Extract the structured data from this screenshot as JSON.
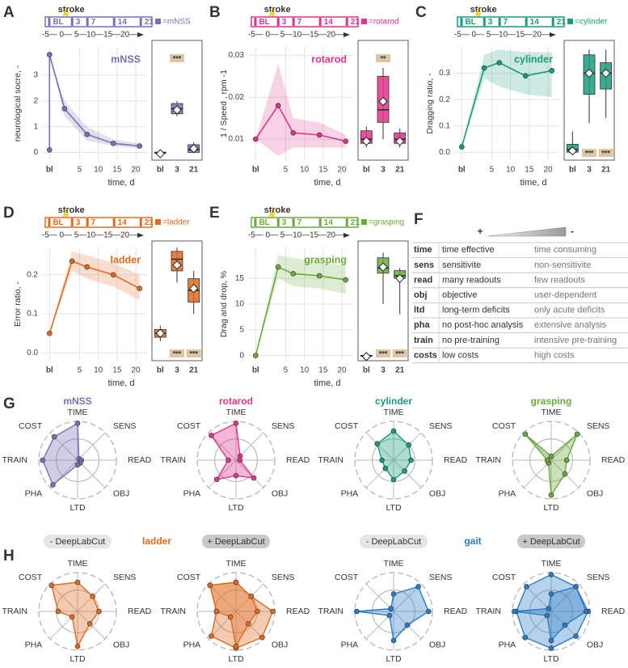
{
  "panel_labels": [
    "A",
    "B",
    "C",
    "D",
    "E",
    "F",
    "G",
    "H"
  ],
  "chart_data": [
    {
      "type": "line",
      "title": "mNSS",
      "color": "#7b6fb5",
      "y_label": "neurological socre, -",
      "x_label": "time, d",
      "x": [
        -3,
        -3,
        1,
        7,
        14,
        21
      ],
      "values": [
        0.1,
        3.8,
        1.7,
        0.7,
        0.35,
        0.25
      ],
      "band_lower": [
        0.1,
        3.8,
        1.4,
        0.45,
        0.25,
        0.15
      ],
      "band_upper": [
        0.1,
        3.8,
        2.0,
        1.0,
        0.5,
        0.35
      ],
      "xlim": [
        -5,
        23
      ],
      "xticks": [
        {
          "value": -3,
          "label": "bl"
        },
        5,
        10,
        15,
        20
      ],
      "ylim": [
        -0.3,
        4.1
      ],
      "yticks": [
        0,
        1,
        2,
        3
      ],
      "grid": true,
      "timeline": {
        "event": "stroke",
        "marks": [
          {
            "value": -3,
            "label": "BL"
          },
          3,
          7,
          14,
          21
        ],
        "axis": "-5— 0— 5—10—15—20—",
        "legend": "=mNSS"
      },
      "boxplot": {
        "categories": [
          "bl",
          "3",
          "21"
        ],
        "boxes": [
          {
            "min": 0,
            "q1": 0,
            "median": 0,
            "q3": 0,
            "max": 0.1,
            "mean": -0.05
          },
          {
            "min": 1.4,
            "q1": 1.5,
            "median": 1.7,
            "q3": 1.9,
            "max": 2.0,
            "mean": 1.65
          },
          {
            "min": 0,
            "q1": 0,
            "median": 0.1,
            "q3": 0.3,
            "max": 0.4,
            "mean": 0.15
          }
        ],
        "significance": [
          null,
          "***",
          null
        ],
        "significance_position": "top"
      }
    },
    {
      "type": "line",
      "title": "rotarod",
      "color": "#e0338a",
      "y_label": "1 / Speed , rpm -1",
      "x_label": "time, d",
      "x": [
        -3,
        3,
        7,
        14,
        21
      ],
      "values": [
        0.01,
        0.018,
        0.0115,
        0.011,
        0.0095
      ],
      "band_lower": [
        0.01,
        0.006,
        0.008,
        0.008,
        0.008
      ],
      "band_upper": [
        0.01,
        0.028,
        0.015,
        0.014,
        0.011
      ],
      "xlim": [
        -5,
        23
      ],
      "xticks": [
        {
          "value": -3,
          "label": "bl"
        },
        5,
        10,
        15,
        20
      ],
      "ylim": [
        0.005,
        0.032
      ],
      "yticks": [
        0.01,
        0.02,
        0.03
      ],
      "grid": true,
      "timeline": {
        "event": "stroke",
        "marks": [
          {
            "value": -3,
            "label": "BL"
          },
          3,
          7,
          14,
          21
        ],
        "axis": "-5— 0— 5—10—15—20—",
        "legend": "=rotarod"
      },
      "boxplot": {
        "categories": [
          "bl",
          "3",
          "21"
        ],
        "boxes": [
          {
            "min": 0.008,
            "q1": 0.009,
            "median": 0.01,
            "q3": 0.012,
            "max": 0.013,
            "mean": 0.0095
          },
          {
            "min": 0.01,
            "q1": 0.014,
            "median": 0.017,
            "q3": 0.025,
            "max": 0.027,
            "mean": 0.019
          },
          {
            "min": 0.008,
            "q1": 0.009,
            "median": 0.01,
            "q3": 0.0115,
            "max": 0.0125,
            "mean": 0.0095
          }
        ],
        "significance": [
          null,
          "**",
          null
        ],
        "significance_position": "top"
      }
    },
    {
      "type": "line",
      "title": "cylinder",
      "color": "#1a9b7c",
      "y_label": "Dragging ratio, -",
      "x_label": "time, d",
      "x": [
        -3,
        3,
        7,
        14,
        21
      ],
      "values": [
        0.02,
        0.32,
        0.34,
        0.29,
        0.31
      ],
      "band_lower": [
        0.02,
        0.28,
        0.25,
        0.22,
        0.21
      ],
      "band_upper": [
        0.02,
        0.37,
        0.39,
        0.38,
        0.38
      ],
      "xlim": [
        -5,
        23
      ],
      "xticks": [
        {
          "value": -3,
          "label": "bl"
        },
        5,
        10,
        15,
        20
      ],
      "ylim": [
        -0.03,
        0.4
      ],
      "yticks": [
        {
          "value": 0,
          "label": "0.0"
        },
        0.1,
        0.2,
        0.3
      ],
      "grid": true,
      "timeline": {
        "event": "stroke",
        "marks": [
          {
            "value": -3,
            "label": "BL"
          },
          3,
          7,
          14,
          21
        ],
        "axis": "-5— 0— 5—10—15—20—",
        "legend": "=cylinder"
      },
      "boxplot": {
        "categories": [
          "bl",
          "3",
          "21"
        ],
        "boxes": [
          {
            "min": 0,
            "q1": 0,
            "median": 0.01,
            "q3": 0.03,
            "max": 0.08,
            "mean": 0.005
          },
          {
            "min": 0.11,
            "q1": 0.22,
            "median": 0.3,
            "q3": 0.37,
            "max": 0.39,
            "mean": 0.3
          },
          {
            "min": 0.13,
            "q1": 0.24,
            "median": 0.3,
            "q3": 0.34,
            "max": 0.39,
            "mean": 0.3
          }
        ],
        "significance": [
          null,
          "***",
          "***"
        ],
        "significance_position": "bottom"
      }
    },
    {
      "type": "line",
      "title": "ladder",
      "color": "#e06b1f",
      "y_label": "Error ratio, -",
      "x_label": "time, d",
      "x": [
        -3,
        3,
        7,
        14,
        21
      ],
      "values": [
        0.05,
        0.235,
        0.22,
        0.2,
        0.165
      ],
      "band_lower": [
        0.05,
        0.21,
        0.19,
        0.17,
        0.135
      ],
      "band_upper": [
        0.05,
        0.26,
        0.25,
        0.23,
        0.2
      ],
      "xlim": [
        -5,
        23
      ],
      "xticks": [
        {
          "value": -3,
          "label": "bl"
        },
        5,
        10,
        15,
        20
      ],
      "ylim": [
        -0.02,
        0.27
      ],
      "yticks": [
        {
          "value": 0,
          "label": "0.0"
        },
        0.1,
        0.2
      ],
      "grid": true,
      "timeline": {
        "event": "stroke",
        "marks": [
          {
            "value": -3,
            "label": "BL"
          },
          3,
          7,
          14,
          21
        ],
        "axis": "-5— 0— 5—10—15—20—",
        "legend": "=ladder"
      },
      "boxplot": {
        "categories": [
          "bl",
          "3",
          "21"
        ],
        "boxes": [
          {
            "min": 0.03,
            "q1": 0.04,
            "median": 0.05,
            "q3": 0.06,
            "max": 0.07,
            "mean": 0.05
          },
          {
            "min": 0.18,
            "q1": 0.21,
            "median": 0.24,
            "q3": 0.26,
            "max": 0.27,
            "mean": 0.225
          },
          {
            "min": 0.1,
            "q1": 0.13,
            "median": 0.16,
            "q3": 0.19,
            "max": 0.21,
            "mean": 0.165
          }
        ],
        "significance": [
          null,
          "***",
          "***"
        ],
        "significance_position": "bottom"
      }
    },
    {
      "type": "line",
      "title": "grasping",
      "color": "#6aaa3a",
      "y_label": "Drag and drop, %",
      "x_label": "time, d",
      "x": [
        -3,
        3,
        7,
        14,
        21
      ],
      "values": [
        0,
        17.2,
        15.9,
        15.5,
        14.7
      ],
      "band_lower": [
        0,
        15,
        13.5,
        13,
        12
      ],
      "band_upper": [
        0,
        19.5,
        19,
        18,
        17.5
      ],
      "xlim": [
        -5,
        23
      ],
      "xticks": [
        {
          "value": -3,
          "label": "bl"
        },
        5,
        10,
        15,
        20
      ],
      "ylim": [
        -1,
        21
      ],
      "yticks": [
        0,
        5,
        10,
        15
      ],
      "grid": true,
      "timeline": {
        "event": "stroke",
        "marks": [
          {
            "value": -3,
            "label": "BL"
          },
          3,
          7,
          14,
          21
        ],
        "axis": "-5— 0— 5—10—15—20—",
        "legend": "=grasping"
      },
      "boxplot": {
        "categories": [
          "bl",
          "3",
          "21"
        ],
        "boxes": [
          {
            "min": 0,
            "q1": 0,
            "median": 0,
            "q3": 0,
            "max": 0.3,
            "mean": -0.2
          },
          {
            "min": 10,
            "q1": 16,
            "median": 17,
            "q3": 19,
            "max": 20,
            "mean": 17.2
          },
          {
            "min": 8,
            "q1": 15,
            "median": 15.5,
            "q3": 16.5,
            "max": 17,
            "mean": 15
          }
        ],
        "significance": [
          null,
          "***",
          "***"
        ],
        "significance_position": "bottom"
      }
    },
    {
      "type": "radar",
      "title": "mNSS",
      "color": "#7b6fb5",
      "axes": [
        "TIME",
        "SENS",
        "READ",
        "OBJ",
        "LTD",
        "PHA",
        "TRAIN",
        "COST"
      ],
      "rlim": [
        0,
        1
      ],
      "series": [
        {
          "values": [
            0.95,
            0.05,
            0.1,
            0.1,
            0.12,
            0.9,
            0.9,
            0.85
          ],
          "color": "#7b6fb5"
        }
      ]
    },
    {
      "type": "radar",
      "title": "rotarod",
      "color": "#e0338a",
      "axes": [
        "TIME",
        "SENS",
        "READ",
        "OBJ",
        "LTD",
        "PHA",
        "TRAIN",
        "COST"
      ],
      "rlim": [
        0,
        1
      ],
      "series": [
        {
          "values": [
            0.95,
            0.15,
            0.1,
            0.65,
            0.4,
            0.7,
            0.2,
            0.9
          ],
          "color": "#e0338a"
        }
      ]
    },
    {
      "type": "radar",
      "title": "cylinder",
      "color": "#1a9b7c",
      "axes": [
        "TIME",
        "SENS",
        "READ",
        "OBJ",
        "LTD",
        "PHA",
        "TRAIN",
        "COST"
      ],
      "rlim": [
        0,
        1
      ],
      "series": [
        {
          "values": [
            0.75,
            0.55,
            0.45,
            0.4,
            0.5,
            0.3,
            0.3,
            0.6
          ],
          "color": "#1a9b7c"
        }
      ]
    },
    {
      "type": "radar",
      "title": "grasping",
      "color": "#6aaa3a",
      "axes": [
        "TIME",
        "SENS",
        "READ",
        "OBJ",
        "LTD",
        "PHA",
        "TRAIN",
        "COST"
      ],
      "rlim": [
        0,
        1
      ],
      "series": [
        {
          "values": [
            0.1,
            0.95,
            0.4,
            0.5,
            0.9,
            0.1,
            0.1,
            0.95
          ],
          "color": "#6aaa3a"
        }
      ]
    },
    {
      "type": "radar",
      "title": "ladder",
      "subtitle": "- DeepLabCut",
      "color": "#e06b1f",
      "axes": [
        "TIME",
        "SENS",
        "READ",
        "OBJ",
        "LTD",
        "PHA",
        "TRAIN",
        "COST"
      ],
      "rlim": [
        0,
        1
      ],
      "series": [
        {
          "values": [
            0.75,
            0.55,
            0.55,
            0.45,
            0.9,
            0.2,
            0.5,
            0.95
          ],
          "color": "#e06b1f"
        }
      ]
    },
    {
      "type": "radar",
      "subtitle": "+ DeepLabCut",
      "color": "#e06b1f",
      "axes": [
        "TIME",
        "SENS",
        "READ",
        "OBJ",
        "LTD",
        "PHA",
        "TRAIN",
        "COST"
      ],
      "rlim": [
        0,
        1
      ],
      "series": [
        {
          "values": [
            0.75,
            0.55,
            0.95,
            0.95,
            0.95,
            0.9,
            0.5,
            0.95
          ],
          "color": "#e06b1f"
        },
        {
          "values": [
            0.75,
            0.55,
            0.55,
            0.45,
            0.9,
            0.2,
            0.5,
            0.95
          ],
          "color": "#e06b1f"
        }
      ]
    },
    {
      "type": "radar",
      "title": "gait",
      "subtitle": "- DeepLabCut",
      "color": "#2b7cc6",
      "axes": [
        "TIME",
        "SENS",
        "READ",
        "OBJ",
        "LTD",
        "PHA",
        "TRAIN",
        "COST"
      ],
      "rlim": [
        0,
        1
      ],
      "series": [
        {
          "values": [
            0.45,
            0.9,
            0.9,
            0.5,
            0.75,
            0.15,
            0.95,
            0.1
          ],
          "color": "#2b7cc6"
        }
      ]
    },
    {
      "type": "radar",
      "subtitle": "+ DeepLabCut",
      "color": "#2b7cc6",
      "axes": [
        "TIME",
        "SENS",
        "READ",
        "OBJ",
        "LTD",
        "PHA",
        "TRAIN",
        "COST"
      ],
      "rlim": [
        0,
        1
      ],
      "series": [
        {
          "values": [
            0.95,
            0.9,
            0.95,
            0.9,
            0.95,
            0.95,
            0.9,
            0.9
          ],
          "color": "#2b7cc6"
        },
        {
          "values": [
            0.45,
            0.9,
            0.9,
            0.5,
            0.75,
            0.15,
            0.95,
            0.1
          ],
          "color": "#2b7cc6"
        }
      ]
    }
  ],
  "table": {
    "header": {
      "plus": "+",
      "minus": "-"
    },
    "rows": [
      [
        "time",
        "time effective",
        "time consuming"
      ],
      [
        "sens",
        "sensitivite",
        "non-sensitivite"
      ],
      [
        "read",
        "many readouts",
        "few readouts"
      ],
      [
        "obj",
        "objective",
        "user-dependent"
      ],
      [
        "ltd",
        "long-term deficits",
        "only acute deficits"
      ],
      [
        "pha",
        "no post-hoc analysis",
        "extensive analysis"
      ],
      [
        "train",
        "no pre-training",
        "intensive pre-training"
      ],
      [
        "costs",
        "low costs",
        "high costs"
      ]
    ]
  }
}
